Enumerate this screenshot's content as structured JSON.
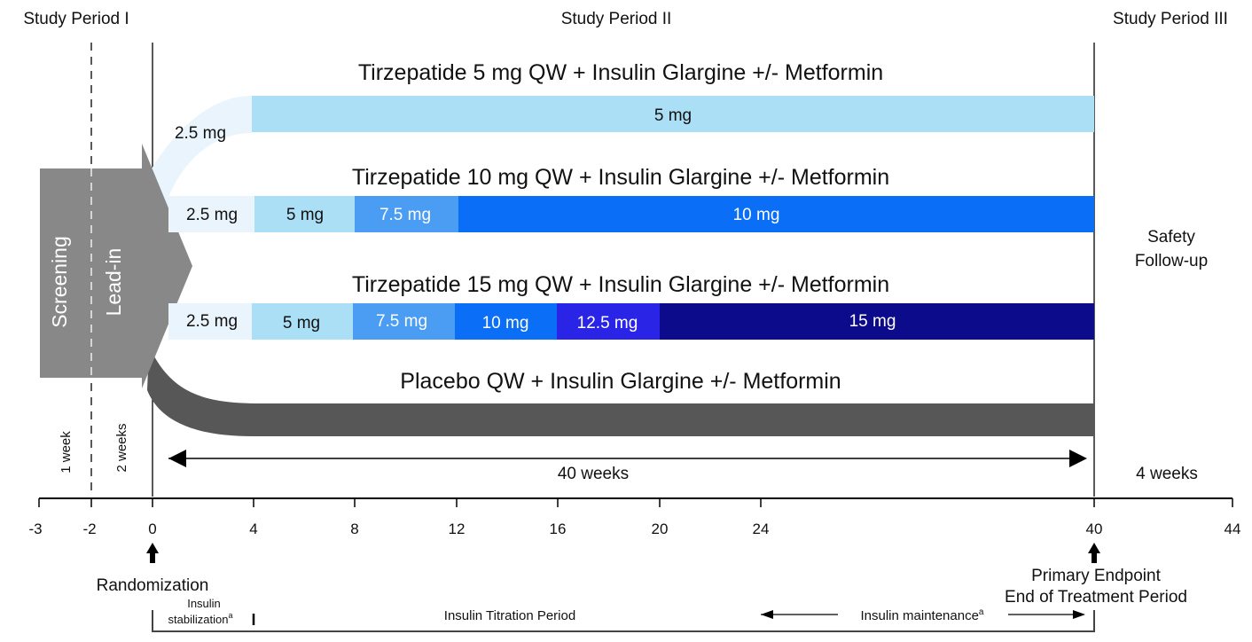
{
  "periods": {
    "p1": "Study Period I",
    "p2": "Study Period II",
    "p3": "Study Period III"
  },
  "leadin": {
    "screening": "Screening",
    "leadin": "Lead-in",
    "week1": "1 week",
    "weeks2": "2 weeks"
  },
  "arms": [
    {
      "title": "Tirzepatide 5 mg QW + Insulin Glargine +/- Metformin",
      "segments": [
        "2.5 mg",
        "5 mg"
      ]
    },
    {
      "title": "Tirzepatide 10 mg QW + Insulin Glargine +/- Metformin",
      "segments": [
        "2.5 mg",
        "5 mg",
        "7.5 mg",
        "10 mg"
      ]
    },
    {
      "title": "Tirzepatide 15 mg QW + Insulin Glargine +/- Metformin",
      "segments": [
        "2.5 mg",
        "5 mg",
        "7.5 mg",
        "10 mg",
        "12.5 mg",
        "15 mg"
      ]
    },
    {
      "title": "Placebo QW + Insulin Glargine +/- Metformin",
      "segments": []
    }
  ],
  "safety": {
    "line1": "Safety",
    "line2": "Follow-up"
  },
  "durations": {
    "treatment": "40 weeks",
    "followup": "4 weeks"
  },
  "axis": {
    "ticks": [
      "-3",
      "-2",
      "0",
      "4",
      "8",
      "12",
      "16",
      "20",
      "24",
      "40",
      "44"
    ]
  },
  "events": {
    "randomization": "Randomization",
    "endpoint1": "Primary Endpoint",
    "endpoint2": "End of Treatment Period"
  },
  "insulin": {
    "stab1": "Insulin",
    "stab2": "stabilization",
    "stab_sup": "a",
    "titration": "Insulin Titration Period",
    "maintenance": "Insulin maintenance",
    "maint_sup": "a"
  },
  "colors": {
    "dose_2_5": "#eaf4fc",
    "dose_5": "#abdff6",
    "dose_7_5": "#4a9df2",
    "dose_10": "#0a6ff6",
    "dose_12_5": "#2a25e6",
    "dose_15": "#0c0b8c",
    "placebo": "#575757",
    "leadin_arrow": "#888888"
  }
}
